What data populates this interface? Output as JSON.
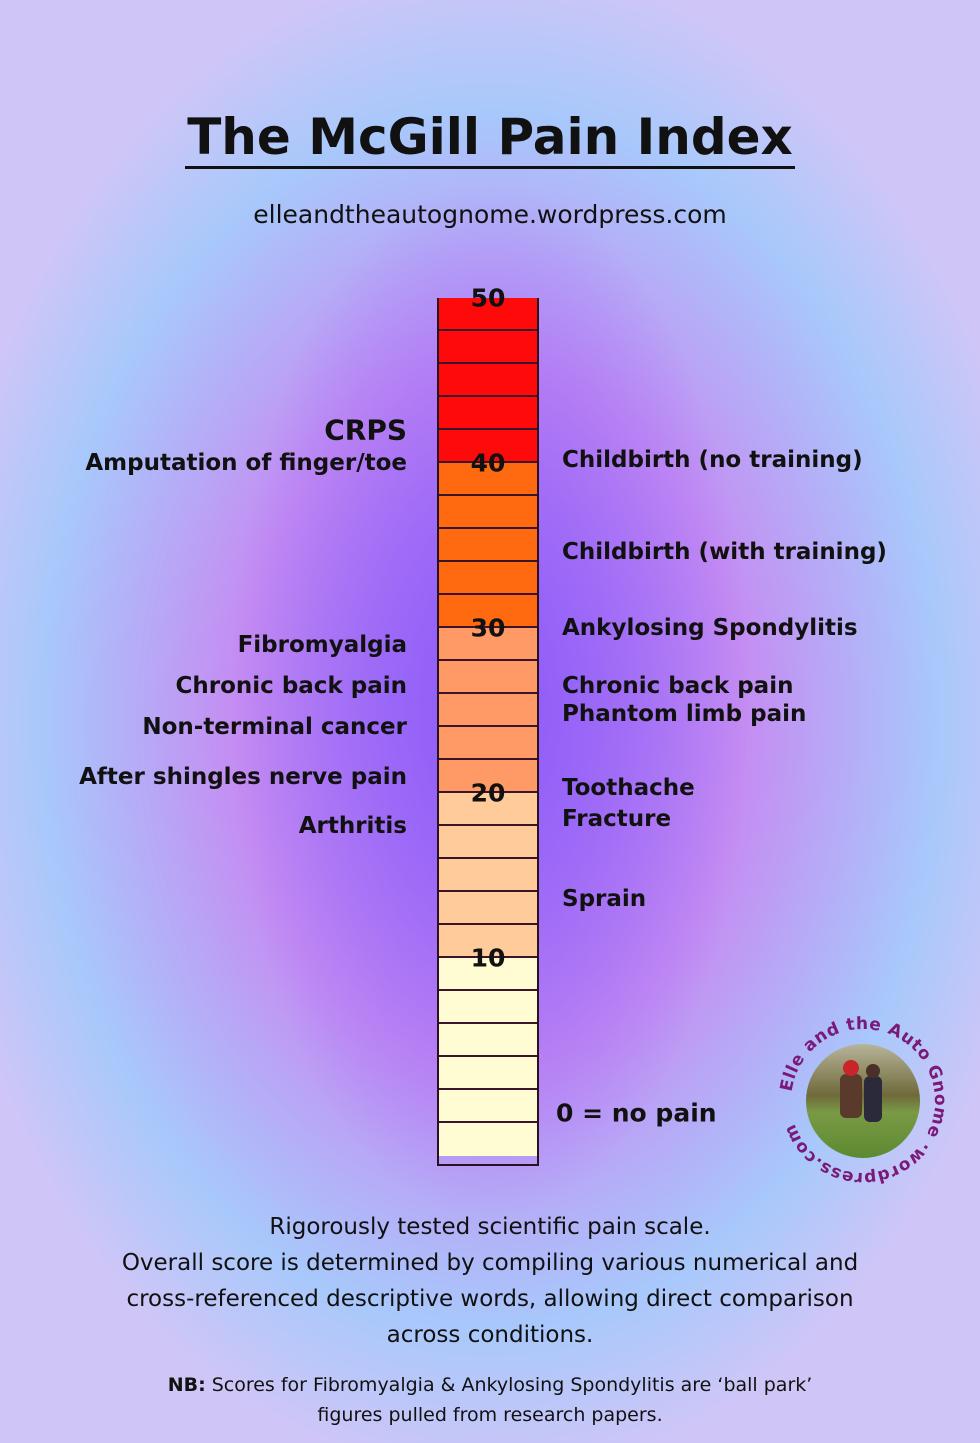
{
  "title": "The McGill Pain Index",
  "url": "elleandtheautognome.wordpress.com",
  "scale": {
    "min": 0,
    "max": 50,
    "ticks": [
      "50",
      "40",
      "30",
      "20",
      "10"
    ],
    "bands": [
      {
        "from": 40,
        "to": 50,
        "color": "#ff0a0a"
      },
      {
        "from": 30,
        "to": 40,
        "color": "#ff6a10"
      },
      {
        "from": 20,
        "to": 30,
        "color": "#ff9a66"
      },
      {
        "from": 10,
        "to": 20,
        "color": "#ffcb9a"
      },
      {
        "from": -2,
        "to": 10,
        "color": "#fffbd2"
      }
    ]
  },
  "left_labels": [
    {
      "text": "CRPS",
      "value": 42
    },
    {
      "text": "Amputation of finger/toe",
      "value": 40
    },
    {
      "text": "Fibromyalgia",
      "value": 29
    },
    {
      "text": "Chronic back pain",
      "value": 26.5
    },
    {
      "text": "Non-terminal cancer",
      "value": 24
    },
    {
      "text": "After shingles nerve pain",
      "value": 21
    },
    {
      "text": "Arthritis",
      "value": 18
    }
  ],
  "right_labels": [
    {
      "text": "Childbirth (no training)",
      "value": 40.2
    },
    {
      "text": "Childbirth (with training)",
      "value": 34.6
    },
    {
      "text": "Ankylosing Spondylitis",
      "value": 30
    },
    {
      "text": "Chronic back pain",
      "value": 26.5
    },
    {
      "text": "Phantom limb pain",
      "value": 24.8
    },
    {
      "text": "Toothache",
      "value": 20.3
    },
    {
      "text": "Fracture",
      "value": 18.4
    },
    {
      "text": "Sprain",
      "value": 13.6
    },
    {
      "text": "0 = no pain",
      "value": 0.6
    }
  ],
  "footer": {
    "line1": "Rigorously tested scientific pain scale.",
    "line2": "Overall score is determined by compiling various numerical and",
    "line3": "cross-referenced descriptive words, allowing direct comparison",
    "line4": "across conditions.",
    "nb_label": "NB:",
    "nb_text": " Scores for Fibromyalgia & Ankylosing Spondylitis are ‘ball park’",
    "nb_line2": "figures pulled from research papers."
  },
  "logo": {
    "text": "Elle and the Auto Gnome ·wordpress.com"
  }
}
